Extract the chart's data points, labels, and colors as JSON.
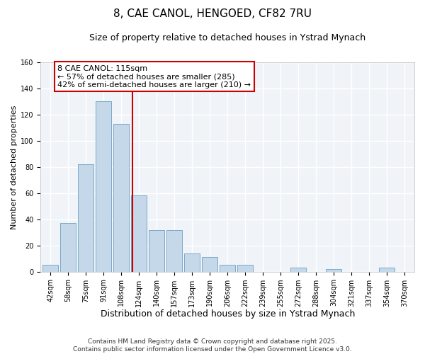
{
  "title": "8, CAE CANOL, HENGOED, CF82 7RU",
  "subtitle": "Size of property relative to detached houses in Ystrad Mynach",
  "xlabel": "Distribution of detached houses by size in Ystrad Mynach",
  "ylabel": "Number of detached properties",
  "bin_labels": [
    "42sqm",
    "58sqm",
    "75sqm",
    "91sqm",
    "108sqm",
    "124sqm",
    "140sqm",
    "157sqm",
    "173sqm",
    "190sqm",
    "206sqm",
    "222sqm",
    "239sqm",
    "255sqm",
    "272sqm",
    "288sqm",
    "304sqm",
    "321sqm",
    "337sqm",
    "354sqm",
    "370sqm"
  ],
  "bar_values": [
    5,
    37,
    82,
    130,
    113,
    58,
    32,
    32,
    14,
    11,
    5,
    5,
    0,
    0,
    3,
    0,
    2,
    0,
    0,
    3,
    0
  ],
  "bar_color": "#c5d8ea",
  "bar_edge_color": "#7aaac8",
  "vline_x_index": 4.65,
  "vline_color": "#cc0000",
  "annotation_line1": "8 CAE CANOL: 115sqm",
  "annotation_line2": "← 57% of detached houses are smaller (285)",
  "annotation_line3": "42% of semi-detached houses are larger (210) →",
  "annotation_box_color": "#cc0000",
  "ylim": [
    0,
    160
  ],
  "yticks": [
    0,
    20,
    40,
    60,
    80,
    100,
    120,
    140,
    160
  ],
  "bg_color": "#f0f4f8",
  "grid_color": "#ffffff",
  "footer_line1": "Contains HM Land Registry data © Crown copyright and database right 2025.",
  "footer_line2": "Contains public sector information licensed under the Open Government Licence v3.0.",
  "title_fontsize": 11,
  "subtitle_fontsize": 9,
  "xlabel_fontsize": 9,
  "ylabel_fontsize": 8,
  "tick_fontsize": 7,
  "annot_fontsize": 8,
  "footer_fontsize": 6.5
}
